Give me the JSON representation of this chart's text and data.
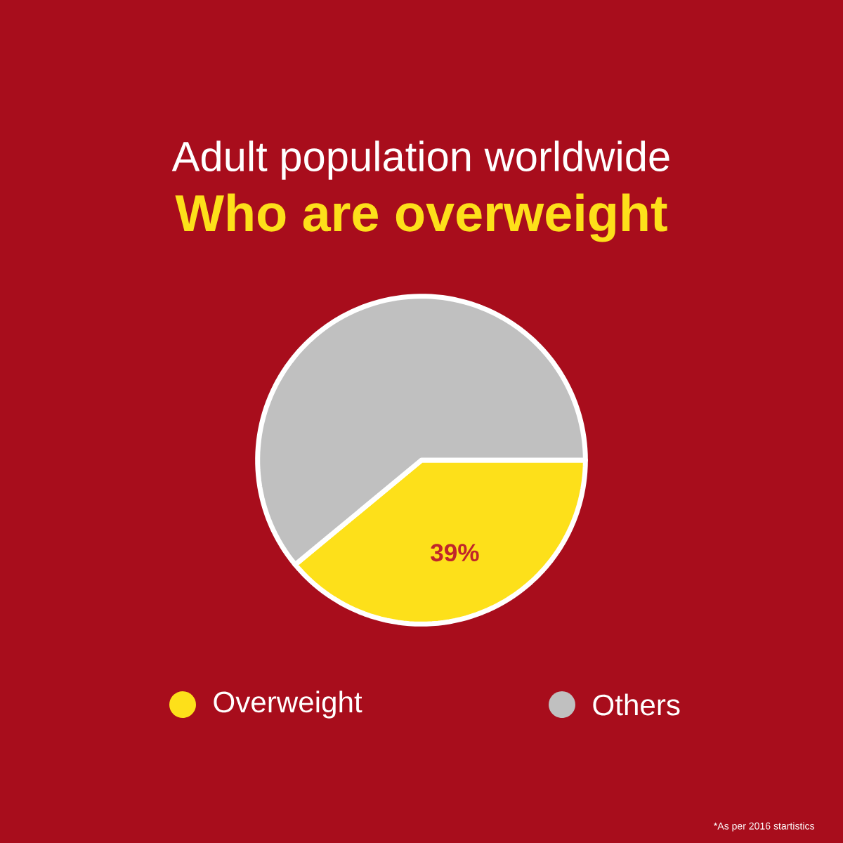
{
  "chart_data": {
    "type": "pie",
    "title": "Adult population worldwide",
    "subtitle": "Who are overweight",
    "categories": [
      "Overweight",
      "Others"
    ],
    "values": [
      39,
      61
    ],
    "colors": [
      "#fde01a",
      "#c0c0c0"
    ],
    "value_labels": [
      "39%",
      null
    ],
    "legend": "bottom",
    "annotations": [
      "*As per 2016 startistics"
    ]
  }
}
